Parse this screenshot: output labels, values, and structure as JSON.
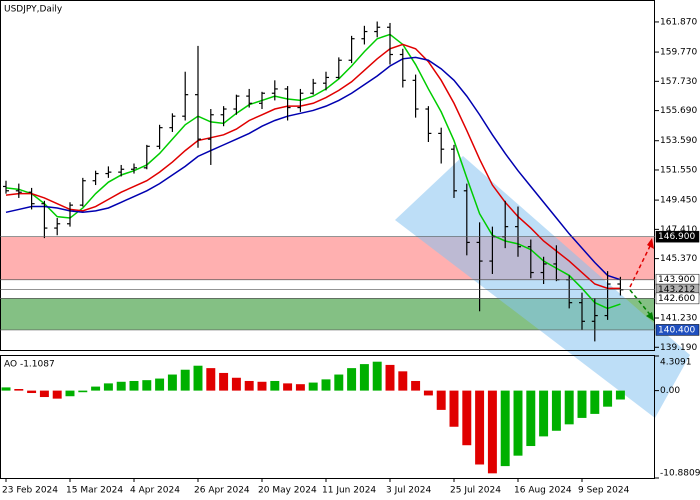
{
  "chart_data": {
    "type": "ohlc",
    "title": "USDJPY,Daily",
    "categories": [
      "23 Feb 2024",
      null,
      null,
      null,
      null,
      "15 Mar 2024",
      null,
      null,
      null,
      null,
      "4 Apr 2024",
      null,
      null,
      null,
      null,
      "26 Apr 2024",
      null,
      null,
      null,
      null,
      "20 May 2024",
      null,
      null,
      null,
      null,
      "11 Jun 2024",
      null,
      null,
      null,
      null,
      "3 Jul 2024",
      null,
      null,
      null,
      null,
      "25 Jul 2024",
      null,
      null,
      null,
      null,
      "16 Aug 2024",
      null,
      null,
      null,
      null,
      "9 Sep 2024",
      null,
      null,
      null
    ],
    "open": [
      150.4,
      150.1,
      150.0,
      149.2,
      147.5,
      147.8,
      149.1,
      150.8,
      151.3,
      151.4,
      151.6,
      151.7,
      153.2,
      154.5,
      155.3,
      156.8,
      153.7,
      155.4,
      155.8,
      156.7,
      156.2,
      156.9,
      157.2,
      155.9,
      156.9,
      157.6,
      158.0,
      159.2,
      160.7,
      161.2,
      161.5,
      159.6,
      157.8,
      155.8,
      154.1,
      153.0,
      150.1,
      146.5,
      145.2,
      146.9,
      147.6,
      146.2,
      144.4,
      145.0,
      143.9,
      142.3,
      141.0,
      141.4,
      143.6
    ],
    "high": [
      150.8,
      150.6,
      150.3,
      149.4,
      148.2,
      149.3,
      151.0,
      151.5,
      151.8,
      151.9,
      152.0,
      153.3,
      154.7,
      155.5,
      158.4,
      160.2,
      155.8,
      156.0,
      156.8,
      157.2,
      157.0,
      157.8,
      157.4,
      157.2,
      157.9,
      158.4,
      159.4,
      160.9,
      161.6,
      161.9,
      161.8,
      160.0,
      158.2,
      156.0,
      154.5,
      153.3,
      150.6,
      147.9,
      147.6,
      149.4,
      149.0,
      146.7,
      145.5,
      146.3,
      144.2,
      143.0,
      142.6,
      144.5,
      144.1
    ],
    "low": [
      149.9,
      149.6,
      148.8,
      146.8,
      147.0,
      147.6,
      149.0,
      150.5,
      151.0,
      151.1,
      151.3,
      151.6,
      153.0,
      154.2,
      155.0,
      153.1,
      151.9,
      154.6,
      155.4,
      155.9,
      155.8,
      156.4,
      155.0,
      155.6,
      156.8,
      157.1,
      157.9,
      159.0,
      160.3,
      160.8,
      158.9,
      157.3,
      155.2,
      153.5,
      152.0,
      149.6,
      145.6,
      141.7,
      144.3,
      146.1,
      145.5,
      144.0,
      143.6,
      143.8,
      141.9,
      140.4,
      139.6,
      141.1,
      142.8
    ],
    "close": [
      150.1,
      150.0,
      149.2,
      147.5,
      147.8,
      149.1,
      150.8,
      151.3,
      151.4,
      151.6,
      151.7,
      153.2,
      154.5,
      155.3,
      156.8,
      153.7,
      155.4,
      155.8,
      156.7,
      156.2,
      156.9,
      157.2,
      155.9,
      156.9,
      157.6,
      158.0,
      159.2,
      160.7,
      161.2,
      161.5,
      159.6,
      157.8,
      155.8,
      154.1,
      153.0,
      150.1,
      146.5,
      145.2,
      146.9,
      147.6,
      146.2,
      144.4,
      145.0,
      143.9,
      142.3,
      141.0,
      141.4,
      143.6,
      143.2
    ],
    "color": "#000000",
    "series": [
      {
        "color": "#00cc00",
        "values": [
          150.3,
          150.2,
          149.9,
          149.2,
          148.3,
          148.2,
          148.9,
          149.9,
          150.7,
          151.2,
          151.5,
          151.9,
          152.7,
          153.7,
          154.7,
          155.3,
          154.9,
          154.8,
          155.5,
          156.1,
          156.4,
          156.7,
          156.5,
          156.4,
          156.7,
          157.2,
          157.9,
          158.8,
          159.8,
          160.7,
          161.0,
          160.3,
          158.9,
          157.2,
          155.6,
          153.6,
          151.0,
          148.5,
          147.0,
          146.6,
          146.4,
          146.0,
          145.2,
          144.7,
          144.2,
          143.3,
          142.3,
          141.9,
          142.2
        ]
      },
      {
        "color": "#e00000",
        "values": [
          149.8,
          149.9,
          149.9,
          149.6,
          149.2,
          148.8,
          148.7,
          149.0,
          149.5,
          150.0,
          150.4,
          150.8,
          151.4,
          152.1,
          152.9,
          153.6,
          153.8,
          154.0,
          154.4,
          155.0,
          155.4,
          155.8,
          156.0,
          156.0,
          156.2,
          156.6,
          157.1,
          157.7,
          158.5,
          159.3,
          160.0,
          160.3,
          160.0,
          159.1,
          157.8,
          156.2,
          154.3,
          152.3,
          150.5,
          149.3,
          148.3,
          147.5,
          146.6,
          145.9,
          145.2,
          144.4,
          143.6,
          143.3,
          143.3
        ]
      },
      {
        "color": "#0000b0",
        "values": [
          148.6,
          148.8,
          149.0,
          149.0,
          148.9,
          148.7,
          148.6,
          148.7,
          148.9,
          149.3,
          149.7,
          150.1,
          150.6,
          151.2,
          151.8,
          152.5,
          152.9,
          153.3,
          153.7,
          154.1,
          154.6,
          155.0,
          155.3,
          155.5,
          155.7,
          156.0,
          156.4,
          156.9,
          157.5,
          158.1,
          158.8,
          159.3,
          159.4,
          159.2,
          158.6,
          157.8,
          156.7,
          155.4,
          154.0,
          152.7,
          151.5,
          150.4,
          149.3,
          148.2,
          147.1,
          146.1,
          145.1,
          144.2,
          143.9
        ]
      }
    ],
    "ylim": [
      139.0,
      163.4
    ],
    "yticks": [
      {
        "value": 161.87,
        "label": "161.870"
      },
      {
        "value": 159.77,
        "label": "159.770"
      },
      {
        "value": 157.73,
        "label": "157.730"
      },
      {
        "value": 155.69,
        "label": "155.690"
      },
      {
        "value": 153.59,
        "label": "153.590"
      },
      {
        "value": 151.55,
        "label": "151.550"
      },
      {
        "value": 149.45,
        "label": "149.450"
      },
      {
        "value": 147.41,
        "label": "147.410"
      },
      {
        "value": 145.37,
        "label": "145.370"
      },
      {
        "value": 141.23,
        "label": "141.230"
      },
      {
        "value": 139.19,
        "label": "139.190"
      }
    ],
    "zones": [
      {
        "top": 146.9,
        "bottom": 143.9,
        "color": "#ffb0b0"
      },
      {
        "top": 142.6,
        "bottom": 140.4,
        "color": "#84c084"
      }
    ],
    "levels": [
      {
        "value": 146.9,
        "label": "146.900",
        "background": "#000000",
        "text_color": "#ffffff"
      },
      {
        "value": 143.9,
        "label": "143.900",
        "background": "#ffffff",
        "text_color": "#000000"
      },
      {
        "value": 143.212,
        "label": "143.212",
        "background": "#b0b0b0",
        "text_color": "#000000"
      },
      {
        "value": 142.6,
        "label": "142.600",
        "background": "#ffffff",
        "text_color": "#000000"
      },
      {
        "value": 140.4,
        "label": "140.400",
        "background": "#1f4fbf",
        "text_color": "#ffffff"
      }
    ],
    "indicator": {
      "type": "histogram",
      "label": "AO -1.1087",
      "values": [
        0.4,
        0.2,
        -0.3,
        -0.8,
        -1.0,
        -0.7,
        -0.2,
        0.5,
        0.9,
        1.1,
        1.2,
        1.3,
        1.5,
        2.0,
        2.6,
        3.1,
        2.8,
        2.2,
        1.6,
        1.2,
        1.1,
        1.2,
        0.9,
        0.8,
        1.0,
        1.4,
        2.0,
        2.8,
        3.3,
        3.6,
        3.2,
        2.4,
        1.2,
        -0.6,
        -2.4,
        -4.5,
        -6.8,
        -9.2,
        -10.3,
        -9.4,
        -8.1,
        -6.9,
        -5.7,
        -5.0,
        -4.2,
        -3.4,
        -2.9,
        -2.0,
        -1.1087
      ],
      "up_color": "#00b000",
      "down_color": "#e00000",
      "ylim": [
        -10.8809,
        4.3091
      ],
      "yticks": [
        4.3091,
        {
          "value": 0,
          "label": "0.00"
        },
        -10.8809
      ]
    }
  }
}
